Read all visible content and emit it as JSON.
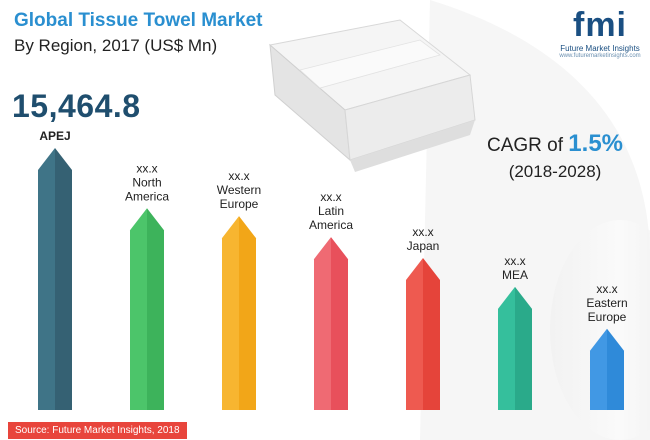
{
  "header": {
    "title": "Global Tissue Towel Market",
    "subtitle": "By Region, 2017 (US$ Mn)"
  },
  "highlight": {
    "value": "15,464.8"
  },
  "cagr": {
    "prefix": "CAGR of",
    "value": "1.5%",
    "period": "(2018-2028)"
  },
  "logo": {
    "mark": "fmi",
    "name": "Future Market Insights",
    "url": "www.futuremarketinsights.com"
  },
  "source": "Source: Future Market Insights, 2018",
  "chart_data": {
    "type": "bar",
    "title": "Global Tissue Towel Market",
    "categories": [
      "APEJ",
      "North America",
      "Western Europe",
      "Latin America",
      "Japan",
      "MEA",
      "Eastern Europe"
    ],
    "label_lines": [
      [
        "APEJ"
      ],
      [
        "xx.x",
        "North",
        "America"
      ],
      [
        "xx.x",
        "Western",
        "Europe"
      ],
      [
        "xx.x",
        "Latin",
        "America"
      ],
      [
        "xx.x",
        "Japan"
      ],
      [
        "xx.x",
        "MEA"
      ],
      [
        "xx.x",
        "Eastern",
        "Europe"
      ]
    ],
    "values": [
      15464.8,
      null,
      null,
      null,
      null,
      null,
      null
    ],
    "relative_heights": [
      1.0,
      0.77,
      0.74,
      0.66,
      0.58,
      0.47,
      0.31
    ],
    "colors": [
      "#356173",
      "#3db35b",
      "#f2a618",
      "#e8505b",
      "#e5443a",
      "#2aaa8a",
      "#2f8ad9"
    ],
    "colors_light": [
      "#3f7487",
      "#4cc56a",
      "#f7b530",
      "#ef6a73",
      "#ee5a50",
      "#35bf9c",
      "#4198e4"
    ]
  }
}
